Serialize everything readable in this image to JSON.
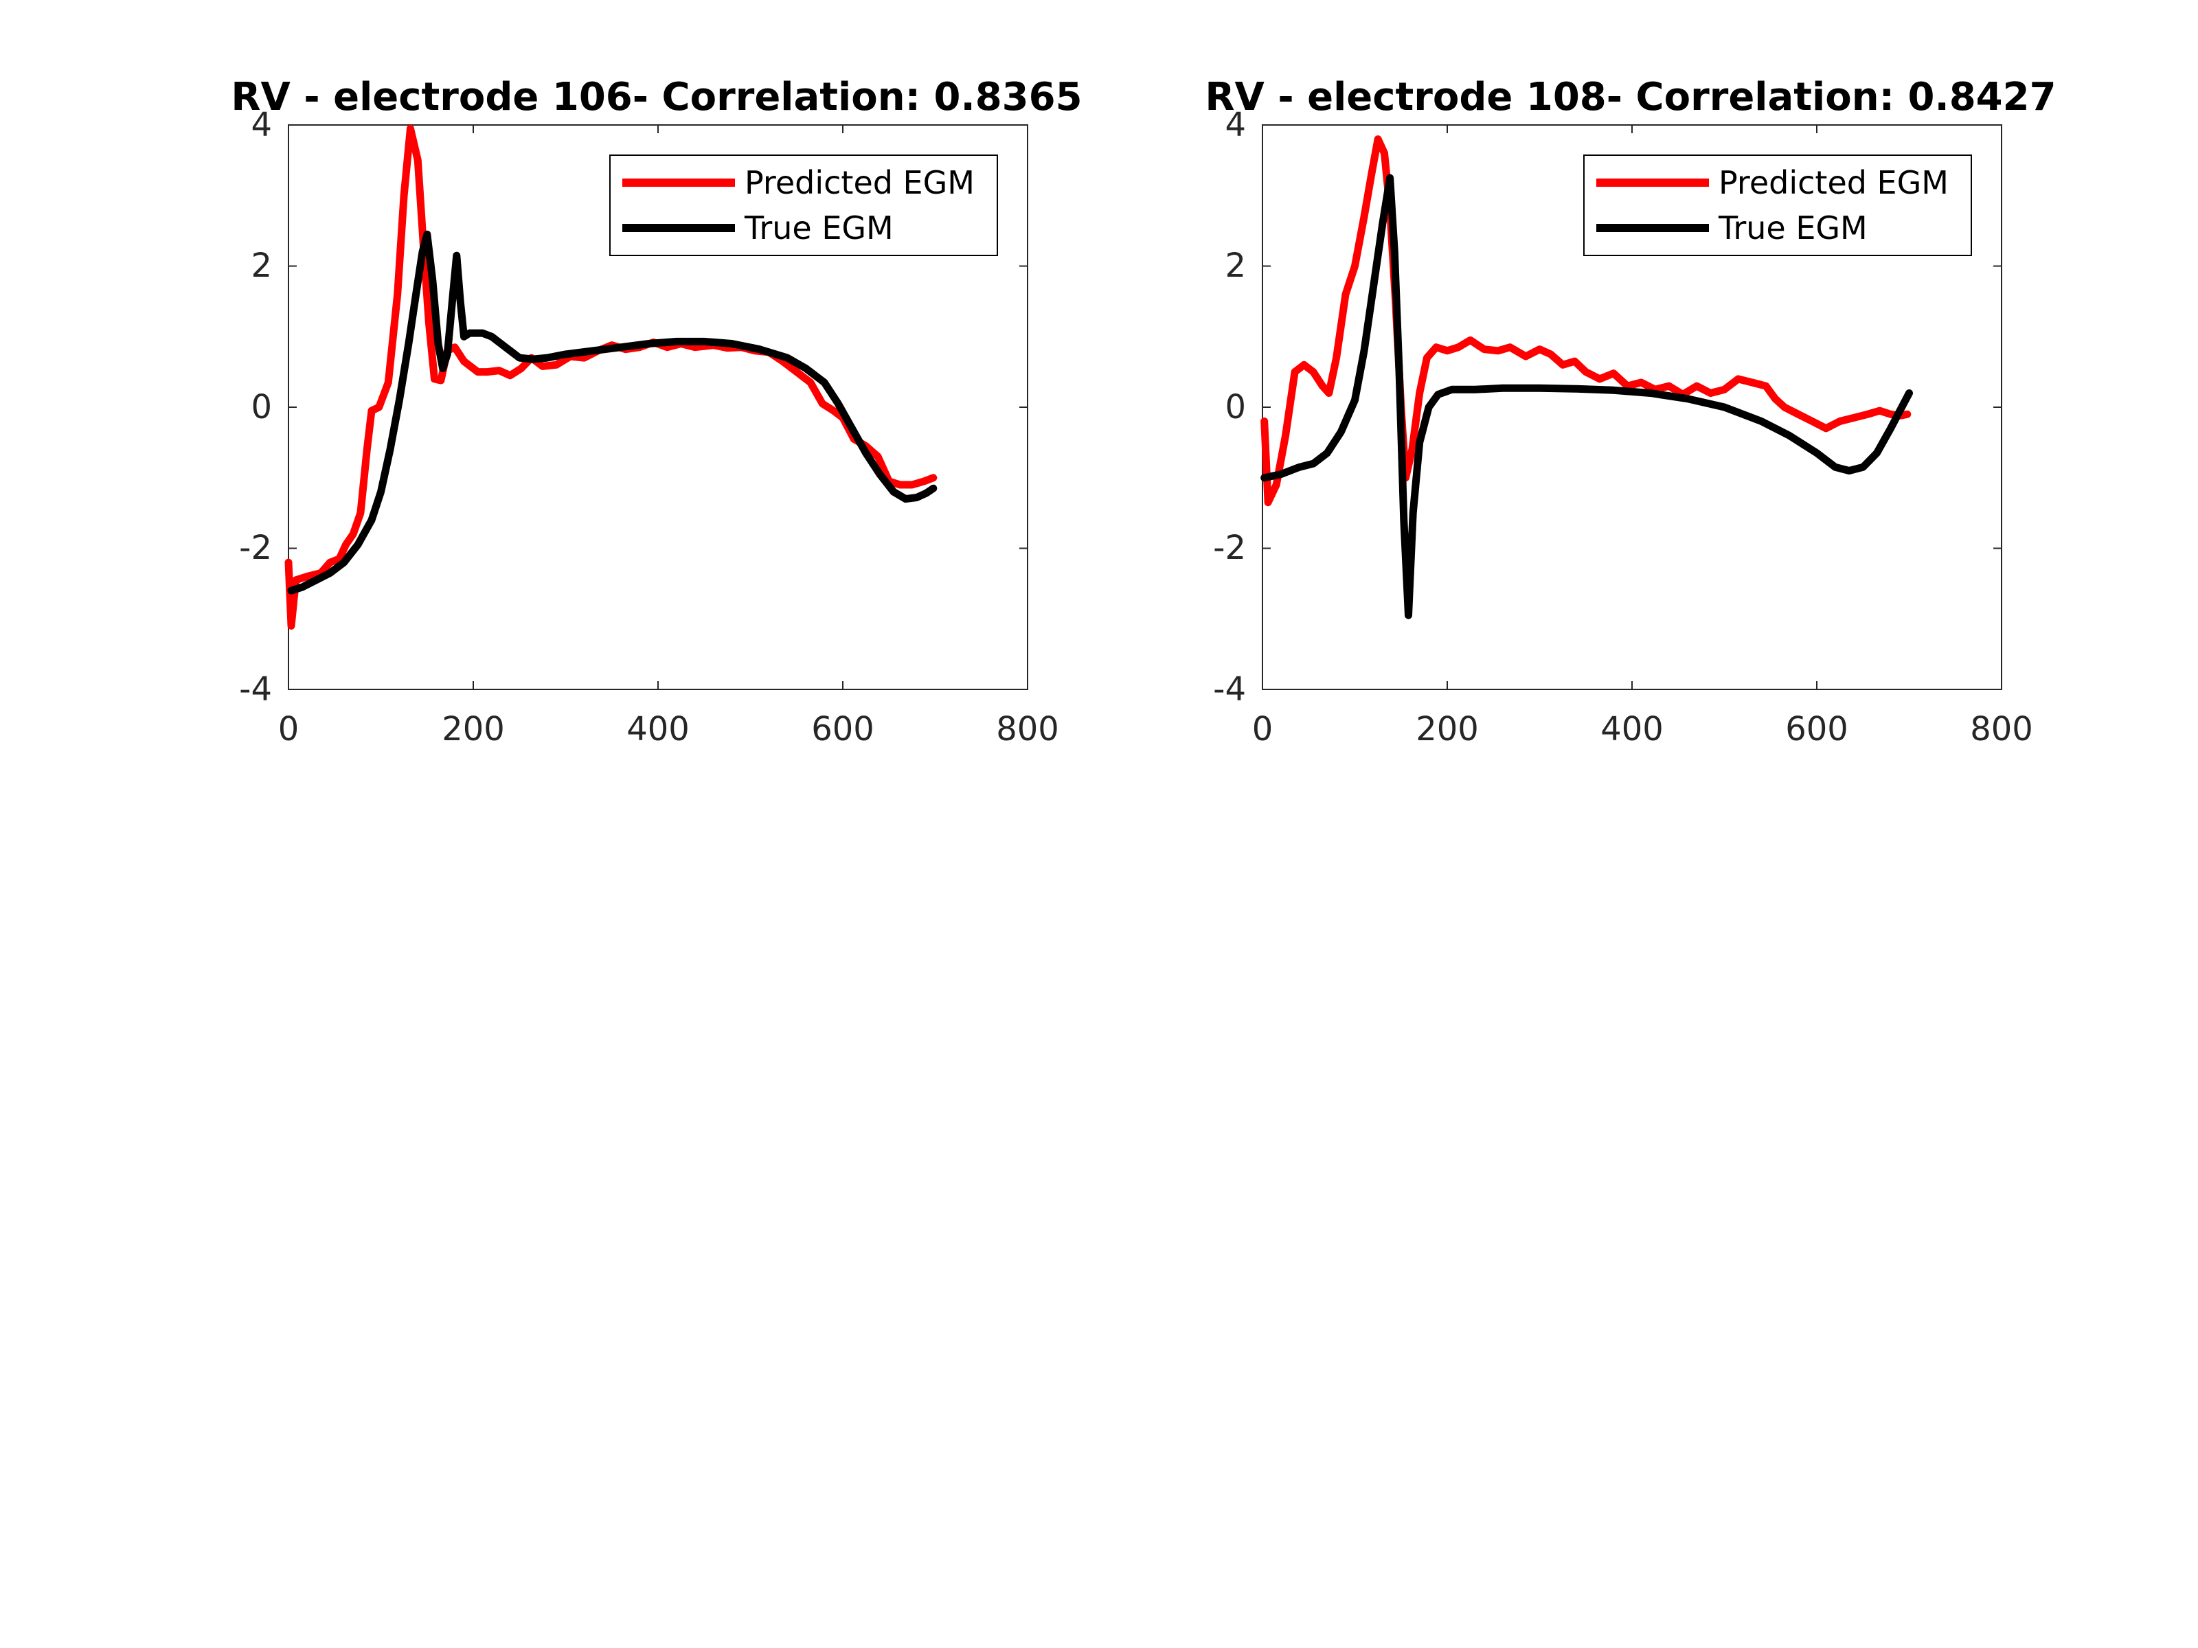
{
  "chart_data": [
    {
      "type": "line",
      "title": "RV - electrode 106- Correlation: 0.8365",
      "xlabel": "",
      "ylabel": "",
      "xlim": [
        0,
        800
      ],
      "ylim": [
        -4,
        4
      ],
      "xticks": [
        "0",
        "200",
        "400",
        "600",
        "800"
      ],
      "yticks": [
        "-4",
        "-2",
        "0",
        "2",
        "4"
      ],
      "grid": false,
      "legend_position": "top-right",
      "series": [
        {
          "name": "Predicted EGM",
          "color": "#ff0000",
          "points": [
            [
              0,
              -2.2
            ],
            [
              3,
              -3.1
            ],
            [
              8,
              -2.45
            ],
            [
              20,
              -2.4
            ],
            [
              35,
              -2.35
            ],
            [
              45,
              -2.2
            ],
            [
              55,
              -2.15
            ],
            [
              62,
              -1.95
            ],
            [
              70,
              -1.8
            ],
            [
              78,
              -1.5
            ],
            [
              85,
              -0.6
            ],
            [
              90,
              -0.05
            ],
            [
              98,
              0.0
            ],
            [
              108,
              0.35
            ],
            [
              118,
              1.6
            ],
            [
              125,
              3.0
            ],
            [
              132,
              3.95
            ],
            [
              140,
              3.5
            ],
            [
              146,
              2.3
            ],
            [
              152,
              1.2
            ],
            [
              158,
              0.4
            ],
            [
              165,
              0.38
            ],
            [
              172,
              0.8
            ],
            [
              180,
              0.85
            ],
            [
              190,
              0.65
            ],
            [
              205,
              0.5
            ],
            [
              215,
              0.5
            ],
            [
              228,
              0.52
            ],
            [
              240,
              0.45
            ],
            [
              252,
              0.55
            ],
            [
              263,
              0.7
            ],
            [
              275,
              0.58
            ],
            [
              290,
              0.6
            ],
            [
              305,
              0.72
            ],
            [
              320,
              0.7
            ],
            [
              335,
              0.8
            ],
            [
              350,
              0.88
            ],
            [
              365,
              0.82
            ],
            [
              380,
              0.85
            ],
            [
              395,
              0.92
            ],
            [
              410,
              0.85
            ],
            [
              425,
              0.9
            ],
            [
              440,
              0.85
            ],
            [
              460,
              0.88
            ],
            [
              475,
              0.84
            ],
            [
              490,
              0.85
            ],
            [
              505,
              0.8
            ],
            [
              520,
              0.78
            ],
            [
              535,
              0.65
            ],
            [
              550,
              0.5
            ],
            [
              565,
              0.35
            ],
            [
              578,
              0.05
            ],
            [
              590,
              -0.05
            ],
            [
              600,
              -0.15
            ],
            [
              612,
              -0.45
            ],
            [
              625,
              -0.55
            ],
            [
              638,
              -0.7
            ],
            [
              650,
              -1.05
            ],
            [
              662,
              -1.1
            ],
            [
              675,
              -1.1
            ],
            [
              688,
              -1.05
            ],
            [
              698,
              -1.0
            ]
          ]
        },
        {
          "name": "True EGM",
          "color": "#000000",
          "points": [
            [
              3,
              -2.6
            ],
            [
              15,
              -2.55
            ],
            [
              30,
              -2.45
            ],
            [
              45,
              -2.35
            ],
            [
              60,
              -2.2
            ],
            [
              75,
              -1.95
            ],
            [
              90,
              -1.6
            ],
            [
              100,
              -1.2
            ],
            [
              110,
              -0.6
            ],
            [
              120,
              0.1
            ],
            [
              130,
              0.9
            ],
            [
              138,
              1.6
            ],
            [
              145,
              2.2
            ],
            [
              150,
              2.45
            ],
            [
              156,
              1.8
            ],
            [
              162,
              0.9
            ],
            [
              167,
              0.55
            ],
            [
              172,
              0.75
            ],
            [
              178,
              1.6
            ],
            [
              182,
              2.15
            ],
            [
              186,
              1.5
            ],
            [
              190,
              1.0
            ],
            [
              196,
              1.05
            ],
            [
              210,
              1.05
            ],
            [
              220,
              1.0
            ],
            [
              235,
              0.85
            ],
            [
              250,
              0.7
            ],
            [
              265,
              0.68
            ],
            [
              280,
              0.7
            ],
            [
              300,
              0.75
            ],
            [
              330,
              0.8
            ],
            [
              360,
              0.85
            ],
            [
              390,
              0.9
            ],
            [
              420,
              0.93
            ],
            [
              450,
              0.93
            ],
            [
              480,
              0.9
            ],
            [
              510,
              0.82
            ],
            [
              540,
              0.7
            ],
            [
              560,
              0.55
            ],
            [
              580,
              0.35
            ],
            [
              595,
              0.05
            ],
            [
              610,
              -0.3
            ],
            [
              625,
              -0.65
            ],
            [
              640,
              -0.95
            ],
            [
              655,
              -1.2
            ],
            [
              668,
              -1.3
            ],
            [
              680,
              -1.28
            ],
            [
              690,
              -1.22
            ],
            [
              698,
              -1.15
            ]
          ]
        }
      ]
    },
    {
      "type": "line",
      "title": "RV - electrode 108- Correlation: 0.8427",
      "xlabel": "",
      "ylabel": "",
      "xlim": [
        0,
        800
      ],
      "ylim": [
        -4,
        4
      ],
      "xticks": [
        "0",
        "200",
        "400",
        "600",
        "800"
      ],
      "yticks": [
        "-4",
        "-2",
        "0",
        "2",
        "4"
      ],
      "grid": false,
      "legend_position": "top-right",
      "series": [
        {
          "name": "Predicted EGM",
          "color": "#ff0000",
          "points": [
            [
              2,
              -0.2
            ],
            [
              6,
              -1.35
            ],
            [
              15,
              -1.1
            ],
            [
              25,
              -0.4
            ],
            [
              35,
              0.5
            ],
            [
              45,
              0.6
            ],
            [
              55,
              0.5
            ],
            [
              65,
              0.3
            ],
            [
              72,
              0.2
            ],
            [
              80,
              0.7
            ],
            [
              90,
              1.6
            ],
            [
              100,
              2.0
            ],
            [
              110,
              2.7
            ],
            [
              118,
              3.3
            ],
            [
              125,
              3.8
            ],
            [
              132,
              3.6
            ],
            [
              138,
              2.8
            ],
            [
              144,
              1.5
            ],
            [
              150,
              0.0
            ],
            [
              155,
              -1.0
            ],
            [
              162,
              -0.6
            ],
            [
              170,
              0.2
            ],
            [
              178,
              0.7
            ],
            [
              188,
              0.85
            ],
            [
              200,
              0.8
            ],
            [
              212,
              0.85
            ],
            [
              225,
              0.95
            ],
            [
              240,
              0.82
            ],
            [
              255,
              0.8
            ],
            [
              268,
              0.85
            ],
            [
              285,
              0.72
            ],
            [
              300,
              0.82
            ],
            [
              312,
              0.75
            ],
            [
              325,
              0.6
            ],
            [
              338,
              0.65
            ],
            [
              350,
              0.5
            ],
            [
              365,
              0.4
            ],
            [
              380,
              0.48
            ],
            [
              395,
              0.3
            ],
            [
              410,
              0.35
            ],
            [
              425,
              0.25
            ],
            [
              440,
              0.3
            ],
            [
              455,
              0.18
            ],
            [
              470,
              0.3
            ],
            [
              485,
              0.2
            ],
            [
              500,
              0.25
            ],
            [
              515,
              0.4
            ],
            [
              530,
              0.35
            ],
            [
              545,
              0.3
            ],
            [
              555,
              0.12
            ],
            [
              565,
              0.0
            ],
            [
              580,
              -0.1
            ],
            [
              595,
              -0.2
            ],
            [
              610,
              -0.3
            ],
            [
              625,
              -0.2
            ],
            [
              640,
              -0.15
            ],
            [
              655,
              -0.1
            ],
            [
              668,
              -0.05
            ],
            [
              680,
              -0.1
            ],
            [
              690,
              -0.12
            ],
            [
              698,
              -0.1
            ]
          ]
        },
        {
          "name": "True EGM",
          "color": "#000000",
          "points": [
            [
              2,
              -1.0
            ],
            [
              20,
              -0.95
            ],
            [
              40,
              -0.85
            ],
            [
              55,
              -0.8
            ],
            [
              70,
              -0.65
            ],
            [
              85,
              -0.35
            ],
            [
              100,
              0.1
            ],
            [
              110,
              0.8
            ],
            [
              120,
              1.7
            ],
            [
              130,
              2.6
            ],
            [
              138,
              3.25
            ],
            [
              143,
              2.2
            ],
            [
              148,
              0.5
            ],
            [
              153,
              -1.6
            ],
            [
              158,
              -2.95
            ],
            [
              163,
              -1.5
            ],
            [
              170,
              -0.5
            ],
            [
              180,
              0.0
            ],
            [
              190,
              0.18
            ],
            [
              205,
              0.25
            ],
            [
              230,
              0.25
            ],
            [
              260,
              0.27
            ],
            [
              300,
              0.27
            ],
            [
              340,
              0.26
            ],
            [
              380,
              0.24
            ],
            [
              420,
              0.2
            ],
            [
              460,
              0.12
            ],
            [
              500,
              0.0
            ],
            [
              540,
              -0.2
            ],
            [
              570,
              -0.4
            ],
            [
              600,
              -0.65
            ],
            [
              620,
              -0.85
            ],
            [
              635,
              -0.9
            ],
            [
              650,
              -0.85
            ],
            [
              665,
              -0.65
            ],
            [
              680,
              -0.3
            ],
            [
              692,
              0.0
            ],
            [
              700,
              0.2
            ]
          ]
        }
      ]
    }
  ]
}
